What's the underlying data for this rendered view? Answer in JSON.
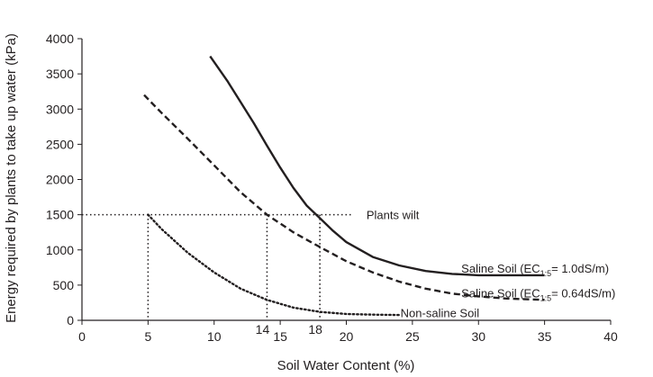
{
  "chart_data": {
    "type": "line",
    "xlabel": "Soil Water Content (%)",
    "ylabel": "Energy required by plants to take up water (kPa)",
    "xlim": [
      0,
      40
    ],
    "ylim": [
      0,
      4000
    ],
    "xticks": [
      0,
      5,
      10,
      15,
      20,
      25,
      30,
      35,
      40
    ],
    "yticks": [
      0,
      500,
      1000,
      1500,
      2000,
      2500,
      3000,
      3500,
      4000
    ],
    "grid": false,
    "series": [
      {
        "name": "Saline Soil (EC1:5 = 1.0dS/m)",
        "style": "solid",
        "color": "#231f20",
        "x": [
          9.7,
          11,
          12,
          13,
          14,
          15,
          16,
          17,
          18,
          19,
          20,
          22,
          24,
          26,
          28,
          30,
          33,
          35
        ],
        "y": [
          3750,
          3400,
          3100,
          2800,
          2480,
          2170,
          1880,
          1630,
          1450,
          1270,
          1110,
          900,
          780,
          700,
          660,
          640,
          640,
          640
        ]
      },
      {
        "name": "Saline Soil (EC1:5 = 0.64dS/m)",
        "style": "dashed",
        "color": "#231f20",
        "x": [
          4.7,
          6,
          8,
          10,
          12,
          14,
          16,
          18,
          20,
          22,
          24,
          26,
          28,
          30,
          32,
          35
        ],
        "y": [
          3200,
          2950,
          2580,
          2200,
          1820,
          1500,
          1250,
          1040,
          840,
          680,
          550,
          450,
          380,
          340,
          310,
          290
        ]
      },
      {
        "name": "Non-saline Soil",
        "style": "dotted",
        "color": "#231f20",
        "x": [
          5,
          6,
          8,
          10,
          12,
          14,
          16,
          18,
          20,
          22,
          24
        ],
        "y": [
          1500,
          1300,
          960,
          680,
          450,
          290,
          180,
          120,
          90,
          80,
          75
        ]
      }
    ],
    "annotations": {
      "wilt_level": 1500,
      "wilt_line_x": [
        0,
        20.5
      ],
      "wilt_label": "Plants wilt",
      "drop_lines_x": [
        5,
        14,
        18
      ],
      "drop_labels": [
        "14",
        "18"
      ],
      "series_labels": [
        {
          "prefix": "Saline Soil (EC",
          "sub": "1:5",
          "suffix": "= 1.0dS/m)",
          "x": 28.7,
          "y": 740
        },
        {
          "prefix": "Saline Soil (EC",
          "sub": "1:5",
          "suffix": "= 0.64dS/m)",
          "x": 28.7,
          "y": 390
        },
        {
          "prefix": "Non-saline Soil",
          "sub": "",
          "suffix": "",
          "x": 24.1,
          "y": 110
        }
      ]
    }
  }
}
